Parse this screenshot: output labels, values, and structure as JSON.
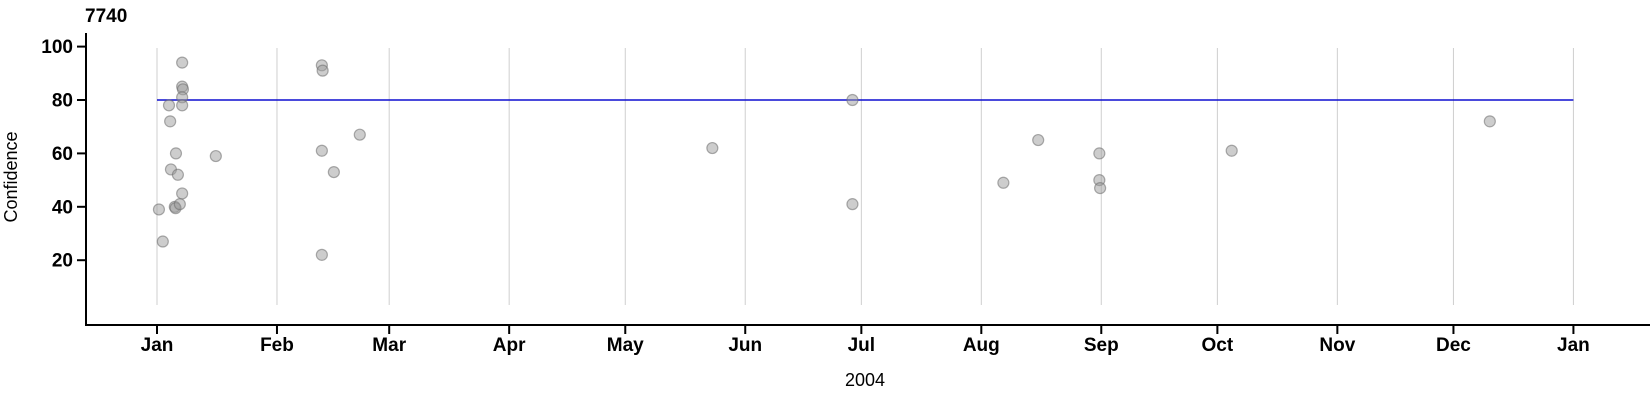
{
  "chart_data": {
    "type": "scatter",
    "title": "7740",
    "xlabel": "2004",
    "ylabel": "Confidence",
    "x_axis": {
      "kind": "time-months",
      "tick_labels": [
        "Jan",
        "Feb",
        "Mar",
        "Apr",
        "May",
        "Jun",
        "Jul",
        "Aug",
        "Sep",
        "Oct",
        "Nov",
        "Dec",
        "Jan"
      ],
      "tick_day_offsets": [
        0,
        31,
        60,
        91,
        121,
        152,
        182,
        213,
        244,
        274,
        305,
        335,
        366
      ],
      "domain_days": [
        0,
        366
      ]
    },
    "y_axis": {
      "tick_values": [
        20,
        40,
        60,
        80,
        100
      ],
      "ylim": [
        -4,
        105
      ]
    },
    "grid": {
      "vertical": true,
      "horizontal": false,
      "color": "#cfcfcf"
    },
    "reference_line": {
      "value": 80,
      "span_days": [
        0,
        366
      ],
      "color": "#0f0fd0"
    },
    "style": {
      "point_fill": "#9c9c9c",
      "point_fill_opacity": 0.5,
      "point_stroke": "#6e6e6e",
      "point_stroke_opacity": 0.55,
      "point_radius": 5.5,
      "axis_color": "#000000",
      "text_color": "#000000",
      "background": "#ffffff"
    },
    "points": [
      {
        "day": 0.5,
        "confidence": 39
      },
      {
        "day": 1.5,
        "confidence": 27
      },
      {
        "day": 3.1,
        "confidence": 78
      },
      {
        "day": 3.4,
        "confidence": 72
      },
      {
        "day": 3.6,
        "confidence": 54
      },
      {
        "day": 4.6,
        "confidence": 40
      },
      {
        "day": 4.8,
        "confidence": 39.5
      },
      {
        "day": 4.9,
        "confidence": 60
      },
      {
        "day": 5.4,
        "confidence": 52
      },
      {
        "day": 5.9,
        "confidence": 41
      },
      {
        "day": 6.5,
        "confidence": 94
      },
      {
        "day": 6.5,
        "confidence": 85
      },
      {
        "day": 6.7,
        "confidence": 84
      },
      {
        "day": 6.5,
        "confidence": 81
      },
      {
        "day": 6.5,
        "confidence": 78
      },
      {
        "day": 6.5,
        "confidence": 45
      },
      {
        "day": 15.2,
        "confidence": 59
      },
      {
        "day": 42.6,
        "confidence": 93
      },
      {
        "day": 42.8,
        "confidence": 91
      },
      {
        "day": 42.6,
        "confidence": 61
      },
      {
        "day": 42.6,
        "confidence": 22
      },
      {
        "day": 45.7,
        "confidence": 53
      },
      {
        "day": 52.4,
        "confidence": 67
      },
      {
        "day": 143.5,
        "confidence": 62
      },
      {
        "day": 179.7,
        "confidence": 80
      },
      {
        "day": 179.7,
        "confidence": 41
      },
      {
        "day": 218.7,
        "confidence": 49
      },
      {
        "day": 227.7,
        "confidence": 65
      },
      {
        "day": 243.5,
        "confidence": 60
      },
      {
        "day": 243.5,
        "confidence": 50
      },
      {
        "day": 243.7,
        "confidence": 47
      },
      {
        "day": 277.7,
        "confidence": 61
      },
      {
        "day": 344.4,
        "confidence": 72
      }
    ]
  }
}
